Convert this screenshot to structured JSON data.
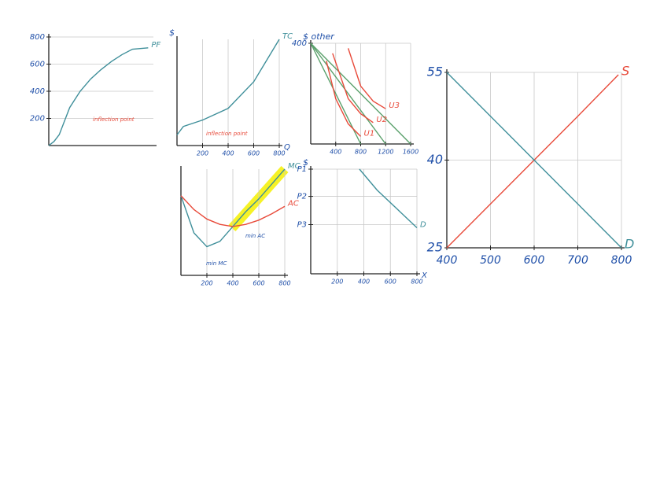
{
  "chart_data": [
    {
      "type": "line",
      "grid": true,
      "xlim": [
        0,
        10
      ],
      "ylim": [
        0,
        800
      ],
      "yticks": [
        200,
        400,
        600,
        800
      ],
      "annotations": [
        "inflection point"
      ],
      "series": [
        {
          "name": "PF",
          "color": "#3f8f9a",
          "x": [
            0,
            0.5,
            1,
            2,
            3,
            4,
            5,
            6,
            7,
            8,
            9.5
          ],
          "values": [
            0,
            30,
            80,
            280,
            400,
            490,
            560,
            620,
            670,
            710,
            720
          ]
        }
      ]
    },
    {
      "type": "line",
      "grid": true,
      "y_label": "$",
      "x_label": "Q",
      "xlim": [
        0,
        800
      ],
      "ylim": [
        0,
        100
      ],
      "xticks": [
        200,
        400,
        600,
        800
      ],
      "annotations": [
        "inflection point"
      ],
      "series": [
        {
          "name": "TC",
          "color": "#3f8f9a",
          "x": [
            0,
            50,
            200,
            400,
            600,
            700,
            800
          ],
          "values": [
            10,
            18,
            24,
            35,
            60,
            80,
            100
          ]
        }
      ]
    },
    {
      "type": "line",
      "grid": true,
      "y_label": "$ other",
      "xlim": [
        0,
        1600
      ],
      "ylim": [
        0,
        400
      ],
      "xticks": [
        400,
        800,
        1200,
        1600
      ],
      "yticks": [
        400
      ],
      "series": [
        {
          "color": "#5aa06b",
          "x": [
            0,
            1600
          ],
          "values": [
            400,
            0
          ]
        },
        {
          "color": "#5aa06b",
          "x": [
            0,
            1200
          ],
          "values": [
            400,
            0
          ]
        },
        {
          "color": "#5aa06b",
          "x": [
            0,
            800
          ],
          "values": [
            400,
            0
          ]
        },
        {
          "name": "U1",
          "color": "#e84a3a",
          "x": [
            250,
            400,
            600,
            800
          ],
          "values": [
            330,
            180,
            80,
            30
          ]
        },
        {
          "name": "U2",
          "color": "#e84a3a",
          "x": [
            350,
            600,
            800,
            1000
          ],
          "values": [
            360,
            180,
            120,
            85
          ]
        },
        {
          "name": "U3",
          "color": "#e84a3a",
          "x": [
            600,
            800,
            1000,
            1200
          ],
          "values": [
            380,
            230,
            170,
            140
          ]
        }
      ]
    },
    {
      "type": "line",
      "grid": true,
      "xlim": [
        0,
        800
      ],
      "ylim": [
        0,
        100
      ],
      "xticks": [
        200,
        400,
        600,
        800
      ],
      "annotations": [
        "min AC",
        "min MC"
      ],
      "series": [
        {
          "name": "MC",
          "color": "#3f8f9a",
          "x": [
            0,
            100,
            200,
            300,
            400,
            500,
            600,
            700,
            800
          ],
          "values": [
            75,
            40,
            27,
            32,
            46,
            60,
            72,
            86,
            100
          ]
        },
        {
          "name": "AC",
          "color": "#e84a3a",
          "x": [
            0,
            100,
            200,
            300,
            400,
            500,
            600,
            700,
            800
          ],
          "values": [
            75,
            62,
            53,
            48,
            46,
            48,
            52,
            58,
            65
          ]
        }
      ]
    },
    {
      "type": "line",
      "grid": true,
      "y_label": "$",
      "x_label": "X",
      "xlim": [
        0,
        800
      ],
      "ylim": [
        0,
        100
      ],
      "xticks": [
        200,
        400,
        600,
        800
      ],
      "yticks": [
        {
          "value": 100,
          "label": "P1"
        },
        {
          "value": 74,
          "label": "P2"
        },
        {
          "value": 47,
          "label": "P3"
        }
      ],
      "series": [
        {
          "name": "D",
          "color": "#3f8f9a",
          "x": [
            367,
            500,
            650,
            800
          ],
          "values": [
            100,
            80,
            62,
            44
          ]
        }
      ]
    },
    {
      "type": "line",
      "grid": true,
      "xlim": [
        400,
        800
      ],
      "ylim": [
        25,
        55
      ],
      "xticks": [
        400,
        500,
        600,
        700,
        800
      ],
      "yticks": [
        25,
        40,
        55
      ],
      "series": [
        {
          "name": "S",
          "color": "#e84a3a",
          "x": [
            400,
            500,
            600,
            700,
            793
          ],
          "values": [
            25,
            32.5,
            40,
            47.5,
            54.6
          ]
        },
        {
          "name": "D",
          "color": "#3f8f9a",
          "x": [
            400,
            500,
            600,
            700,
            800
          ],
          "values": [
            55,
            47.5,
            40,
            32.5,
            25
          ]
        }
      ]
    }
  ]
}
